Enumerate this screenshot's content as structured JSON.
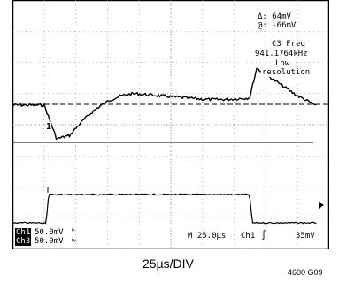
{
  "scope": {
    "cursor_delta": "Δ: 64mV",
    "cursor_at": "@: -66mV",
    "meas_title": "C3 Freq",
    "meas_value": "941.1764kHz",
    "meas_note_1": "Low",
    "meas_note_2": "resolution",
    "ch1_marker": "1",
    "ch3_marker": "T",
    "ch1_label": "Ch1",
    "ch1_scale": "50.0mV",
    "ch3_label": "Ch3",
    "ch3_scale": "50.0mV",
    "timebase": "M 25.0µs",
    "trigger_source": "Ch1",
    "trigger_level": "35mV"
  },
  "footer": {
    "label": "25µs/DIV",
    "figure_id": "4600 G09"
  }
}
